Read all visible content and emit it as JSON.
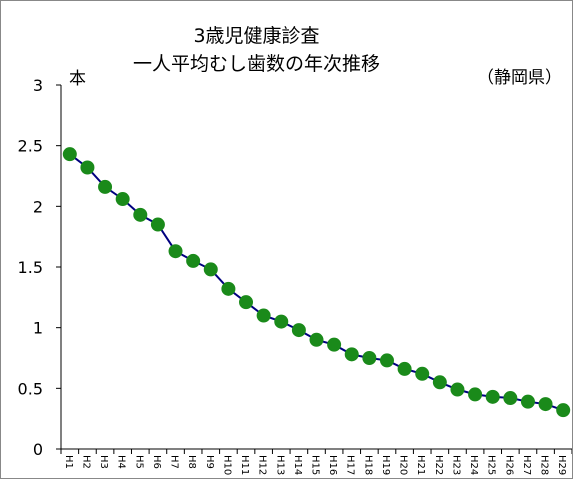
{
  "chart_data": {
    "type": "line",
    "title": "3歳児健康診査",
    "subtitle": "一人平均むし歯数の年次推移",
    "region_label": "（静岡県）",
    "ylabel": "本",
    "xlabel": "",
    "ylim": [
      0,
      3
    ],
    "yticks": [
      "0",
      "0.5",
      "1",
      "1.5",
      "2",
      "2.5",
      "3"
    ],
    "grid": false,
    "categories": [
      "H1",
      "H2",
      "H3",
      "H4",
      "H5",
      "H6",
      "H7",
      "H8",
      "H9",
      "H10",
      "H11",
      "H12",
      "H13",
      "H14",
      "H15",
      "H16",
      "H17",
      "H18",
      "H19",
      "H20",
      "H21",
      "H22",
      "H23",
      "H24",
      "H25",
      "H26",
      "H27",
      "H28",
      "H29"
    ],
    "values": [
      2.43,
      2.32,
      2.16,
      2.06,
      1.93,
      1.85,
      1.63,
      1.55,
      1.48,
      1.32,
      1.21,
      1.1,
      1.05,
      0.98,
      0.9,
      0.86,
      0.78,
      0.75,
      0.73,
      0.66,
      0.62,
      0.55,
      0.49,
      0.45,
      0.43,
      0.42,
      0.39,
      0.37,
      0.32
    ],
    "colors": {
      "line": "#00007f",
      "marker": "#1a8a1a",
      "axis": "#000000"
    }
  }
}
